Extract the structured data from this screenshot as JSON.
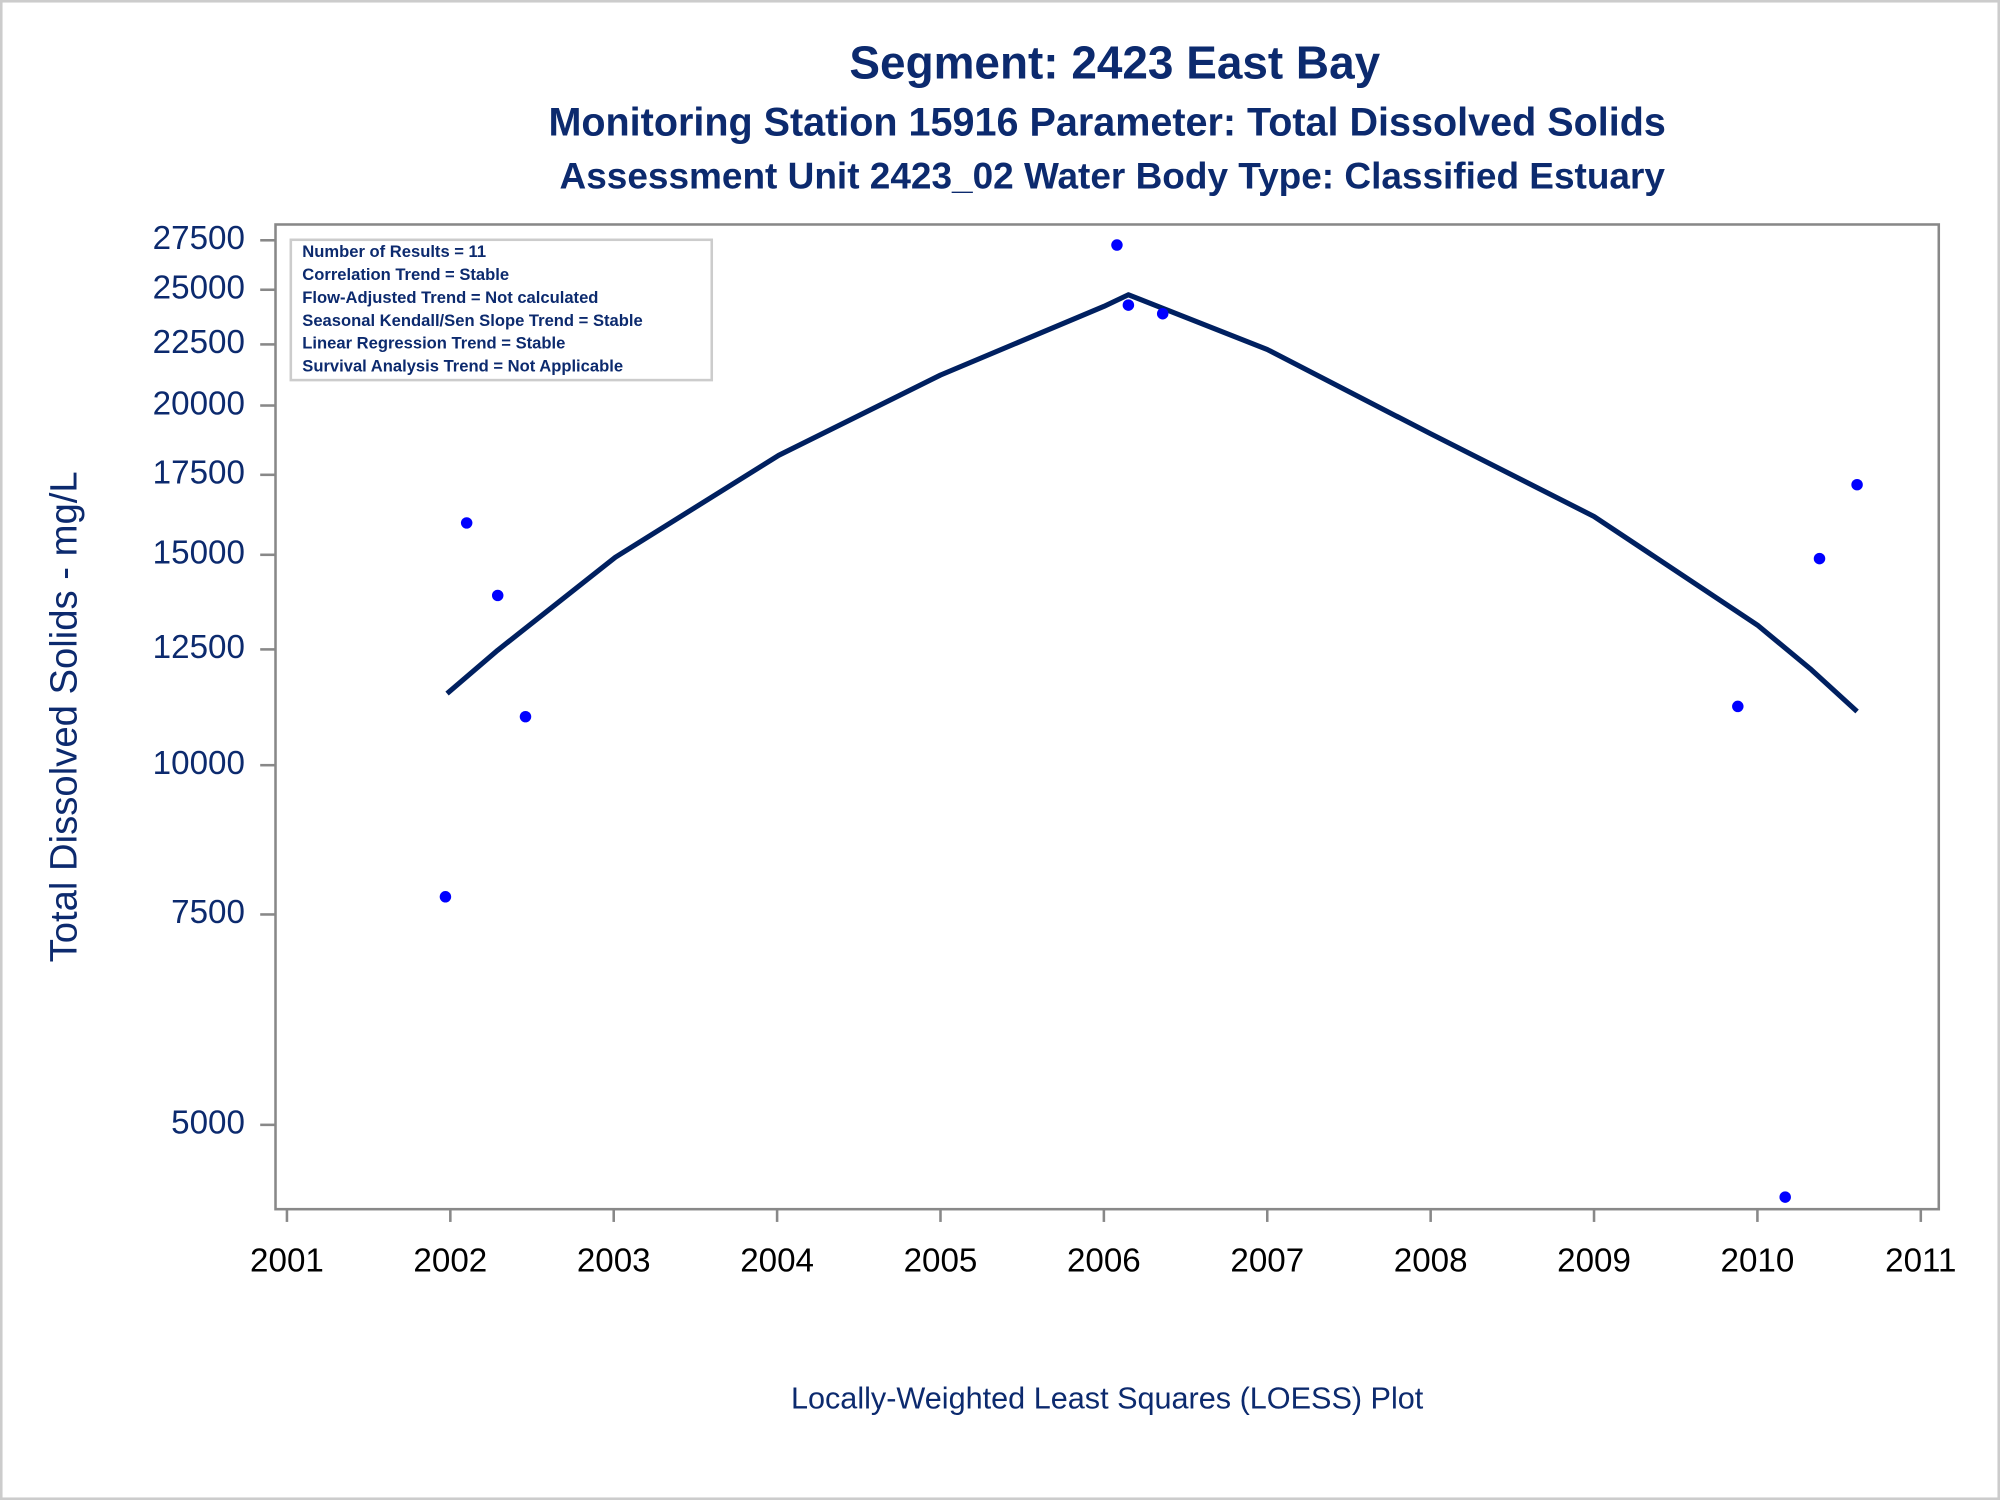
{
  "chart_data": {
    "type": "scatter",
    "title": "Segment: 2423  East Bay",
    "subtitle": "Monitoring Station 15916 Parameter: Total Dissolved Solids",
    "subtitle2": "Assessment Unit 2423_02   Water Body Type: Classified Estuary",
    "y_label": "Total Dissolved Solids - mg/L",
    "footnote": "Locally-Weighted Least Squares (LOESS) Plot",
    "stats": [
      "Number of Results = 11",
      "Correlation Trend = Stable",
      "Flow-Adjusted Trend = Not calculated",
      "Seasonal Kendall/Sen Slope Trend = Stable",
      "Linear Regression Trend = Stable",
      "Survival Analysis Trend = Not Applicable"
    ],
    "log_y": true,
    "xlim": [
      2000.93,
      2011.11
    ],
    "xticks": [
      2001,
      2002,
      2003,
      2004,
      2005,
      2006,
      2007,
      2008,
      2009,
      2010,
      2011
    ],
    "ylim": [
      4250,
      28350
    ],
    "yticks": [
      5000,
      7500,
      10000,
      12500,
      15000,
      17500,
      20000,
      22500,
      25000,
      27500
    ],
    "x": [
      2001.97,
      2002.1,
      2002.29,
      2002.46,
      2006.08,
      2006.15,
      2006.36,
      2009.88,
      2010.17,
      2010.38,
      2010.61
    ],
    "values": [
      7760,
      15950,
      13870,
      10980,
      27250,
      24270,
      23870,
      11200,
      4350,
      14890,
      17170
    ],
    "color": "#0000ff",
    "fit": {
      "x": [
        2001.98,
        2002.29,
        2003.01,
        2004.01,
        2005.0,
        2006.0,
        2006.15,
        2007.0,
        2008.0,
        2009.0,
        2010.0,
        2010.33,
        2010.61
      ],
      "values": [
        11480,
        12480,
        14930,
        18170,
        21210,
        24210,
        24760,
        22280,
        18940,
        16150,
        13100,
        12020,
        11090
      ],
      "color": "#002060"
    }
  }
}
